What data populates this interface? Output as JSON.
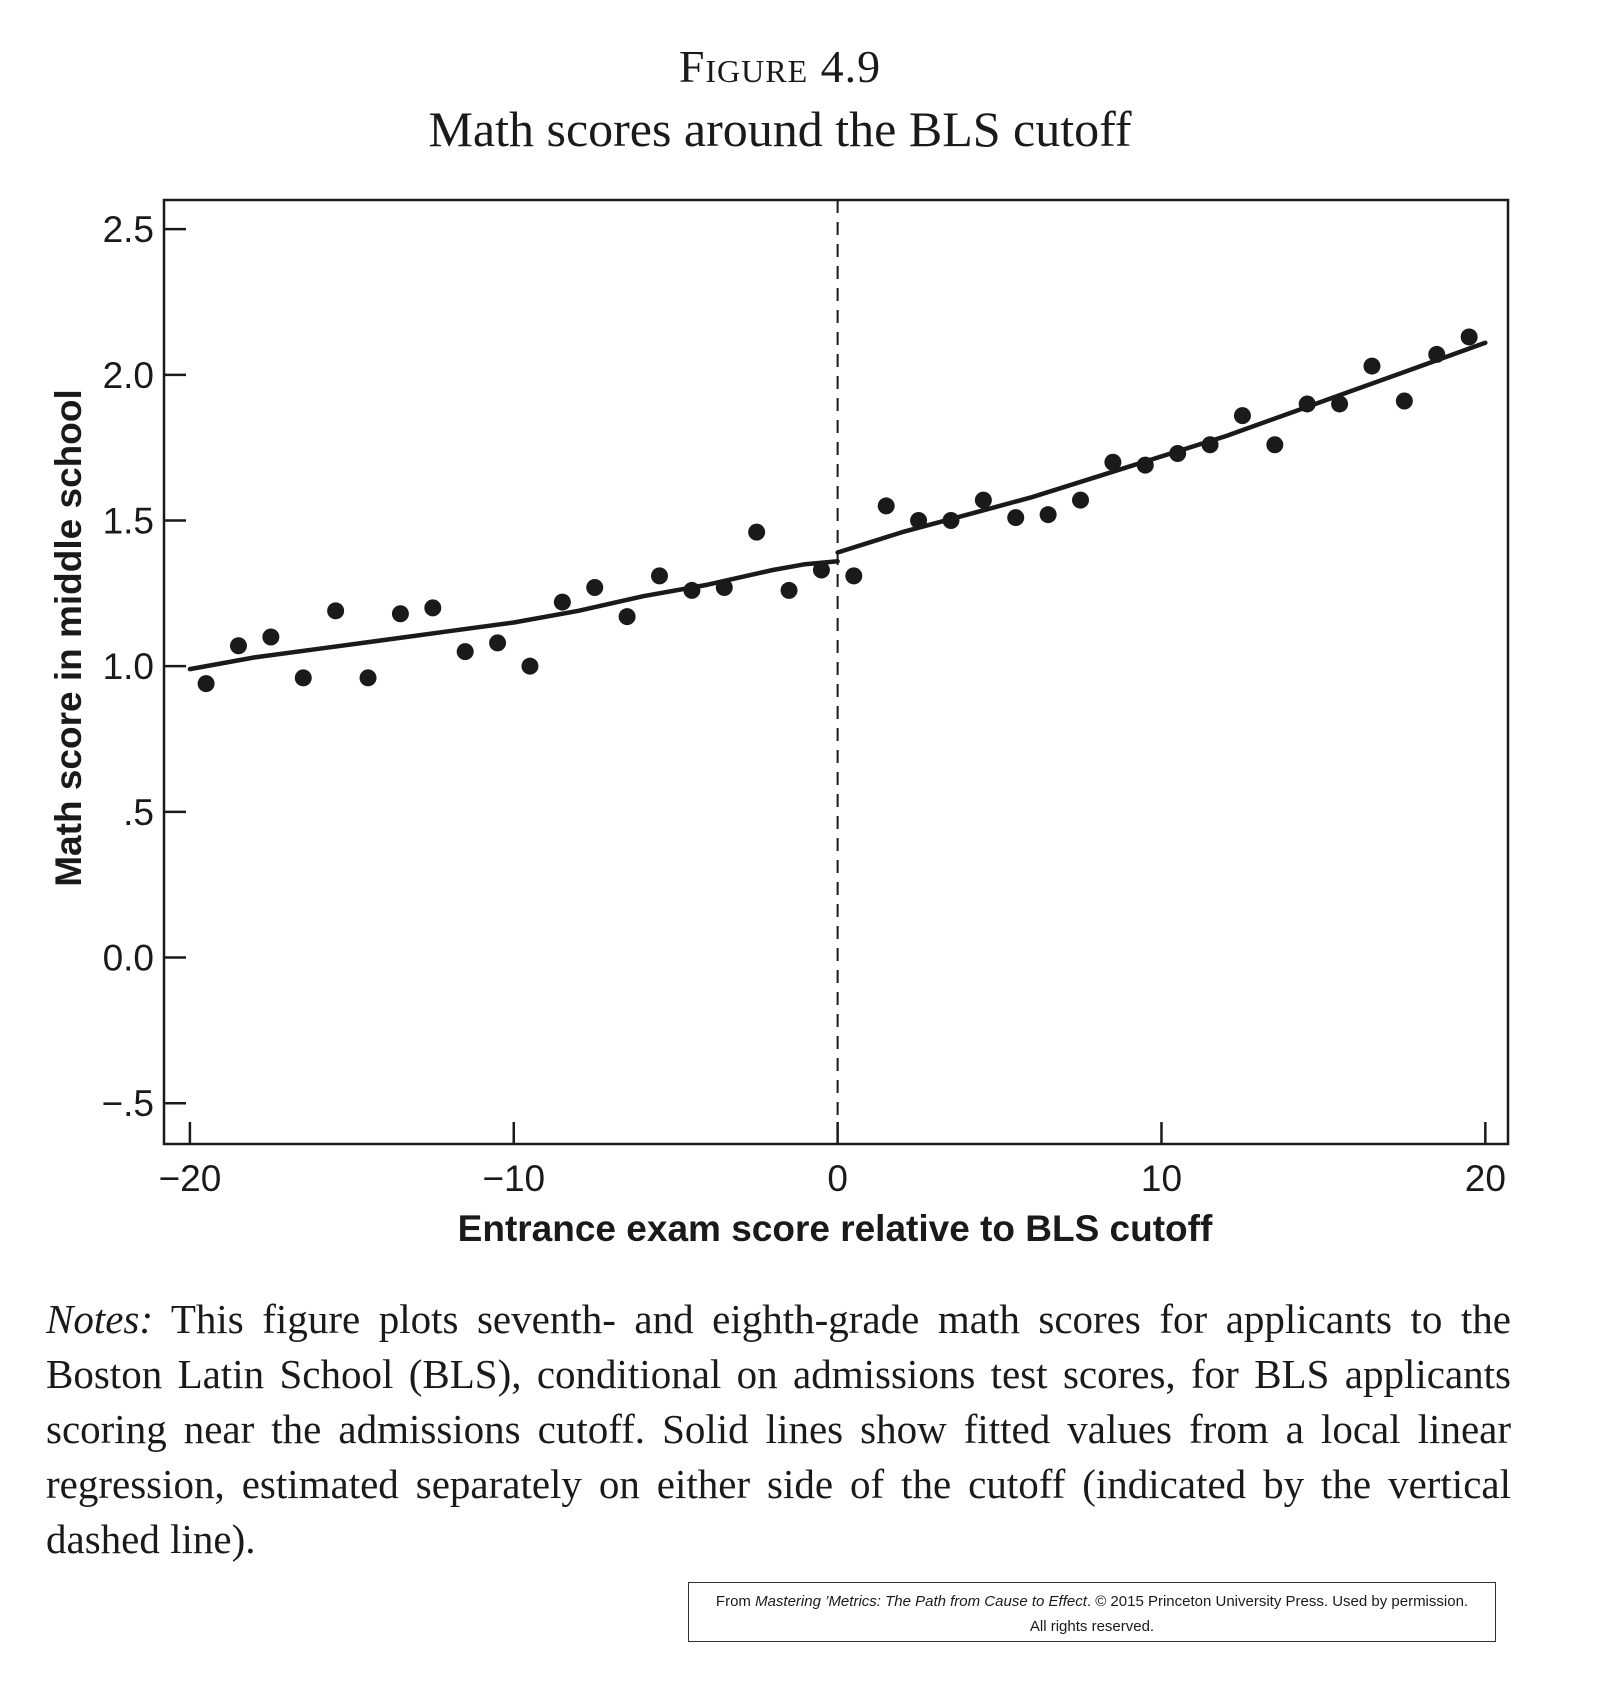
{
  "figure": {
    "label": "Figure 4.9",
    "title": "Math scores around the BLS cutoff"
  },
  "chart_data": {
    "type": "scatter",
    "title": "Math scores around the BLS cutoff",
    "xlabel": "Entrance exam score relative to BLS cutoff",
    "ylabel": "Math score in middle school",
    "xlim": [
      -20.8,
      20.7
    ],
    "ylim": [
      -0.64,
      2.6
    ],
    "xticks": [
      -20,
      -10,
      0,
      10,
      20
    ],
    "xtick_labels": [
      "−20",
      "−10",
      "0",
      "10",
      "20"
    ],
    "yticks": [
      -0.5,
      0,
      0.5,
      1.0,
      1.5,
      2.0,
      2.5
    ],
    "ytick_labels": [
      "−.5",
      "0.0",
      ".5",
      "1.0",
      "1.5",
      "2.0",
      "2.5"
    ],
    "grid": false,
    "legend": "none",
    "cutoff": 0,
    "points": {
      "x": [
        -19.5,
        -18.5,
        -17.5,
        -16.5,
        -15.5,
        -14.5,
        -13.5,
        -12.5,
        -11.5,
        -10.5,
        -9.5,
        -8.5,
        -7.5,
        -6.5,
        -5.5,
        -4.5,
        -3.5,
        -2.5,
        -1.5,
        -0.5,
        0.5,
        1.5,
        2.5,
        3.5,
        4.5,
        5.5,
        6.5,
        7.5,
        8.5,
        9.5,
        10.5,
        11.5,
        12.5,
        13.5,
        14.5,
        15.5,
        16.5,
        17.5,
        18.5,
        19.5
      ],
      "y": [
        0.94,
        1.07,
        1.1,
        0.96,
        1.19,
        0.96,
        1.18,
        1.2,
        1.05,
        1.08,
        1.0,
        1.22,
        1.27,
        1.17,
        1.31,
        1.26,
        1.27,
        1.46,
        1.26,
        1.33,
        1.31,
        1.55,
        1.5,
        1.5,
        1.57,
        1.51,
        1.52,
        1.57,
        1.7,
        1.69,
        1.73,
        1.76,
        1.86,
        1.76,
        1.9,
        1.9,
        2.03,
        1.91,
        2.07,
        2.13
      ]
    },
    "fitted": [
      {
        "side": "left",
        "x": [
          -20,
          -18,
          -16,
          -14,
          -12,
          -10,
          -8,
          -6,
          -4,
          -2,
          -1,
          0
        ],
        "y": [
          0.99,
          1.03,
          1.06,
          1.09,
          1.12,
          1.15,
          1.19,
          1.24,
          1.28,
          1.33,
          1.35,
          1.36
        ]
      },
      {
        "side": "right",
        "x": [
          0,
          2,
          4,
          6,
          8,
          10,
          12,
          14,
          16,
          18,
          20
        ],
        "y": [
          1.39,
          1.46,
          1.52,
          1.58,
          1.65,
          1.72,
          1.79,
          1.87,
          1.95,
          2.03,
          2.11
        ]
      }
    ]
  },
  "notes": {
    "lead": "Notes:",
    "text": " This figure plots seventh- and eighth-grade math scores for applicants to the Boston Latin School (BLS), conditional on admissions test scores, for BLS applicants scoring near the admissions cutoff. Solid lines show fitted values from a local linear regression, estimated separately on either side of the cutoff (indicated by the vertical dashed line)."
  },
  "credit": {
    "from": "From ",
    "book": "Mastering ’Metrics: The Path from Cause to Effect",
    "rest": ". © 2015 Princeton University Press. Used by permission.",
    "line2": "All rights reserved."
  }
}
